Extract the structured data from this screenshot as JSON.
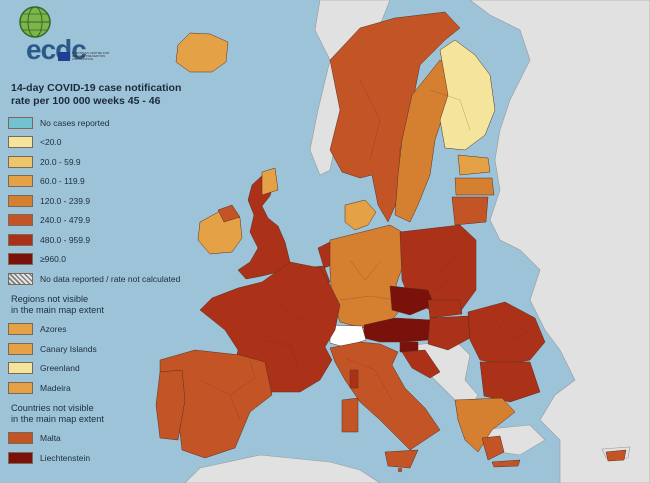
{
  "logo": {
    "text": "ecdc",
    "subtitle": "EUROPEAN CENTRE FOR DISEASE PREVENTION AND CONTROL"
  },
  "legend": {
    "title_line1": "14-day COVID-19 case notification",
    "title_line2": "rate per 100 000 weeks 45 - 46",
    "classes": [
      {
        "label": "No cases reported",
        "color": "#72c2cf"
      },
      {
        "label": "<20.0",
        "color": "#f4e49c"
      },
      {
        "label": "20.0 - 59.9",
        "color": "#edc56a"
      },
      {
        "label": "60.0 - 119.9",
        "color": "#e4a146"
      },
      {
        "label": "120.0 - 239.9",
        "color": "#d57f31"
      },
      {
        "label": "240.0 - 479.9",
        "color": "#c35426"
      },
      {
        "label": "480.0 - 959.9",
        "color": "#ac3119"
      },
      {
        "label": "≥960.0",
        "color": "#7a110a"
      },
      {
        "label": "No data reported / rate not calculated",
        "color": "hatch"
      }
    ],
    "regions_heading_line1": "Regions not visible",
    "regions_heading_line2": "in the main map extent",
    "regions": [
      {
        "label": "Azores",
        "color": "#e4a146"
      },
      {
        "label": "Canary Islands",
        "color": "#e4a146"
      },
      {
        "label": "Greenland",
        "color": "#f4e49c"
      },
      {
        "label": "Madeira",
        "color": "#e4a146"
      }
    ],
    "countries_heading_line1": "Countries not visible",
    "countries_heading_line2": "in the main map extent",
    "countries": [
      {
        "label": "Malta",
        "color": "#c35426"
      },
      {
        "label": "Liechtenstein",
        "color": "#7a110a"
      }
    ]
  },
  "colors": {
    "sea": "#9dc3d9",
    "non_eu_land": "#e1e1e1",
    "borders": "#5a3020"
  }
}
